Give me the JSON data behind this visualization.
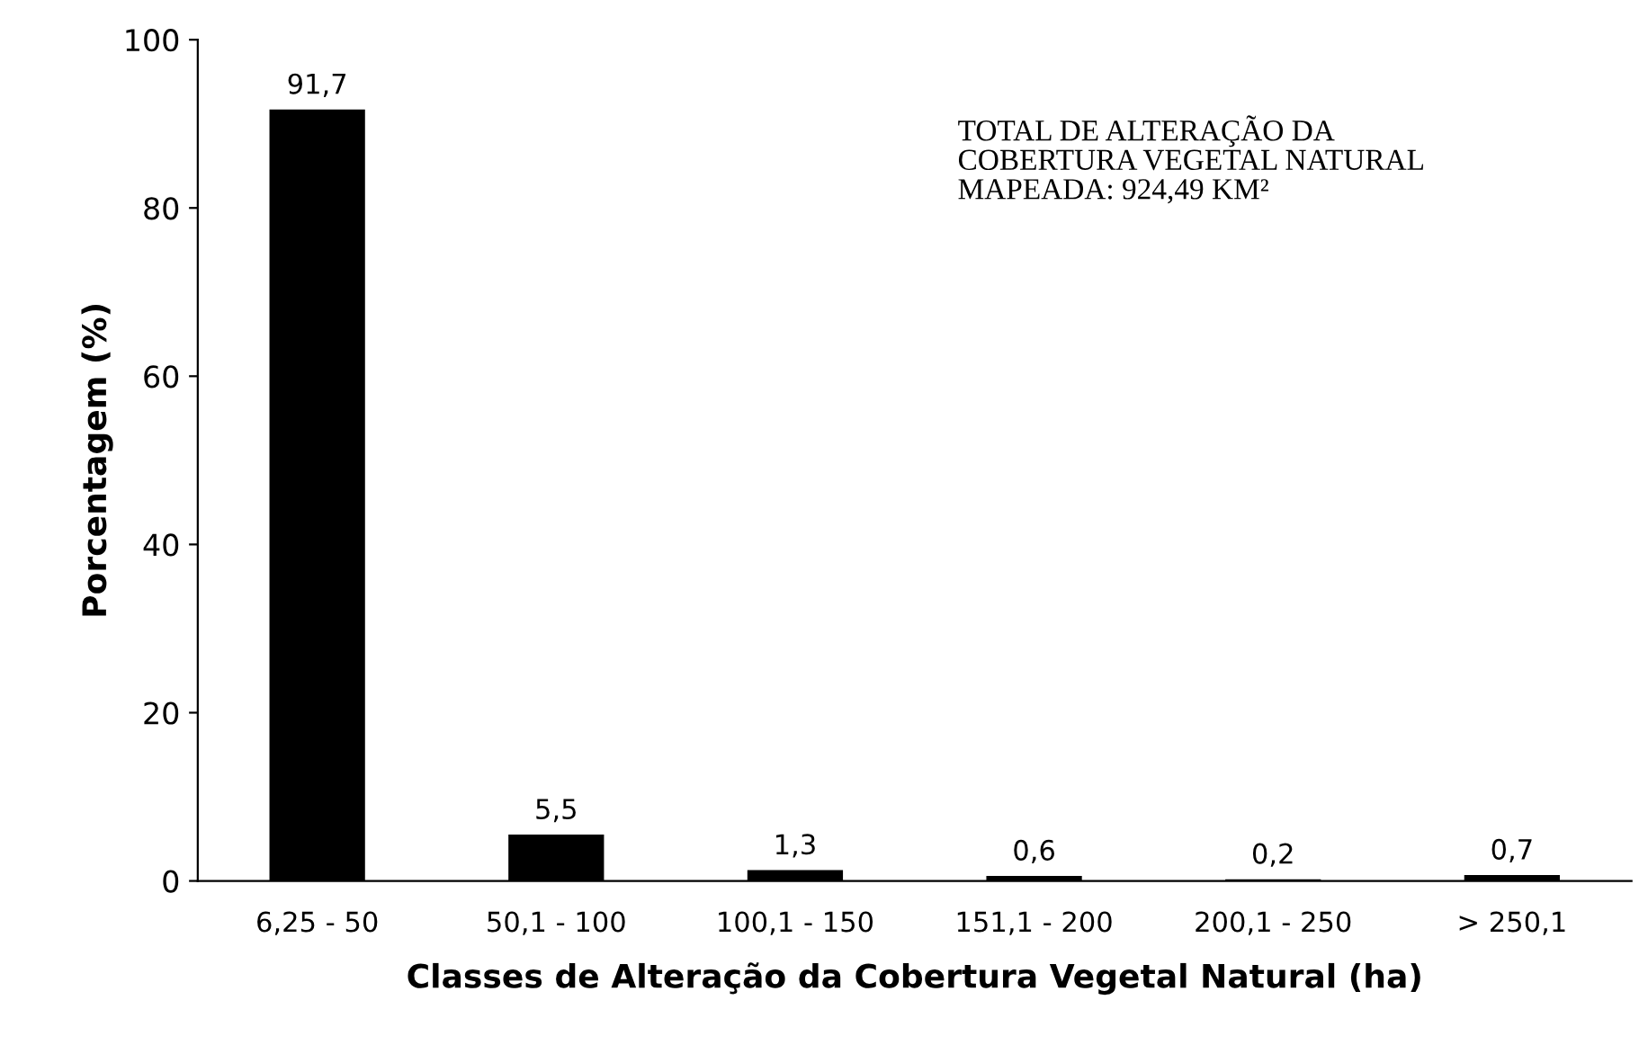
{
  "chart_data": {
    "type": "bar",
    "xlabel": "Classes de Alteração da Cobertura Vegetal Natural (ha)",
    "ylabel": "Porcentagem (%)",
    "categories": [
      "6,25 - 50",
      "50,1 - 100",
      "100,1 - 150",
      "151,1 - 200",
      "200,1 - 250",
      "> 250,1"
    ],
    "values": [
      91.7,
      5.5,
      1.3,
      0.6,
      0.2,
      0.7
    ],
    "value_labels": [
      "91,7",
      "5,5",
      "1,3",
      "0,6",
      "0,2",
      "0,7"
    ],
    "color": "#000000",
    "ylim": [
      0,
      100
    ],
    "yticks": [
      0,
      20,
      40,
      60,
      80,
      100
    ],
    "grid": false,
    "annotations": [
      "TOTAL DE ALTERAÇÃO DA\nCOBERTURA VEGETAL NATURAL\nMAPEADA: 924,49 KM²"
    ]
  }
}
